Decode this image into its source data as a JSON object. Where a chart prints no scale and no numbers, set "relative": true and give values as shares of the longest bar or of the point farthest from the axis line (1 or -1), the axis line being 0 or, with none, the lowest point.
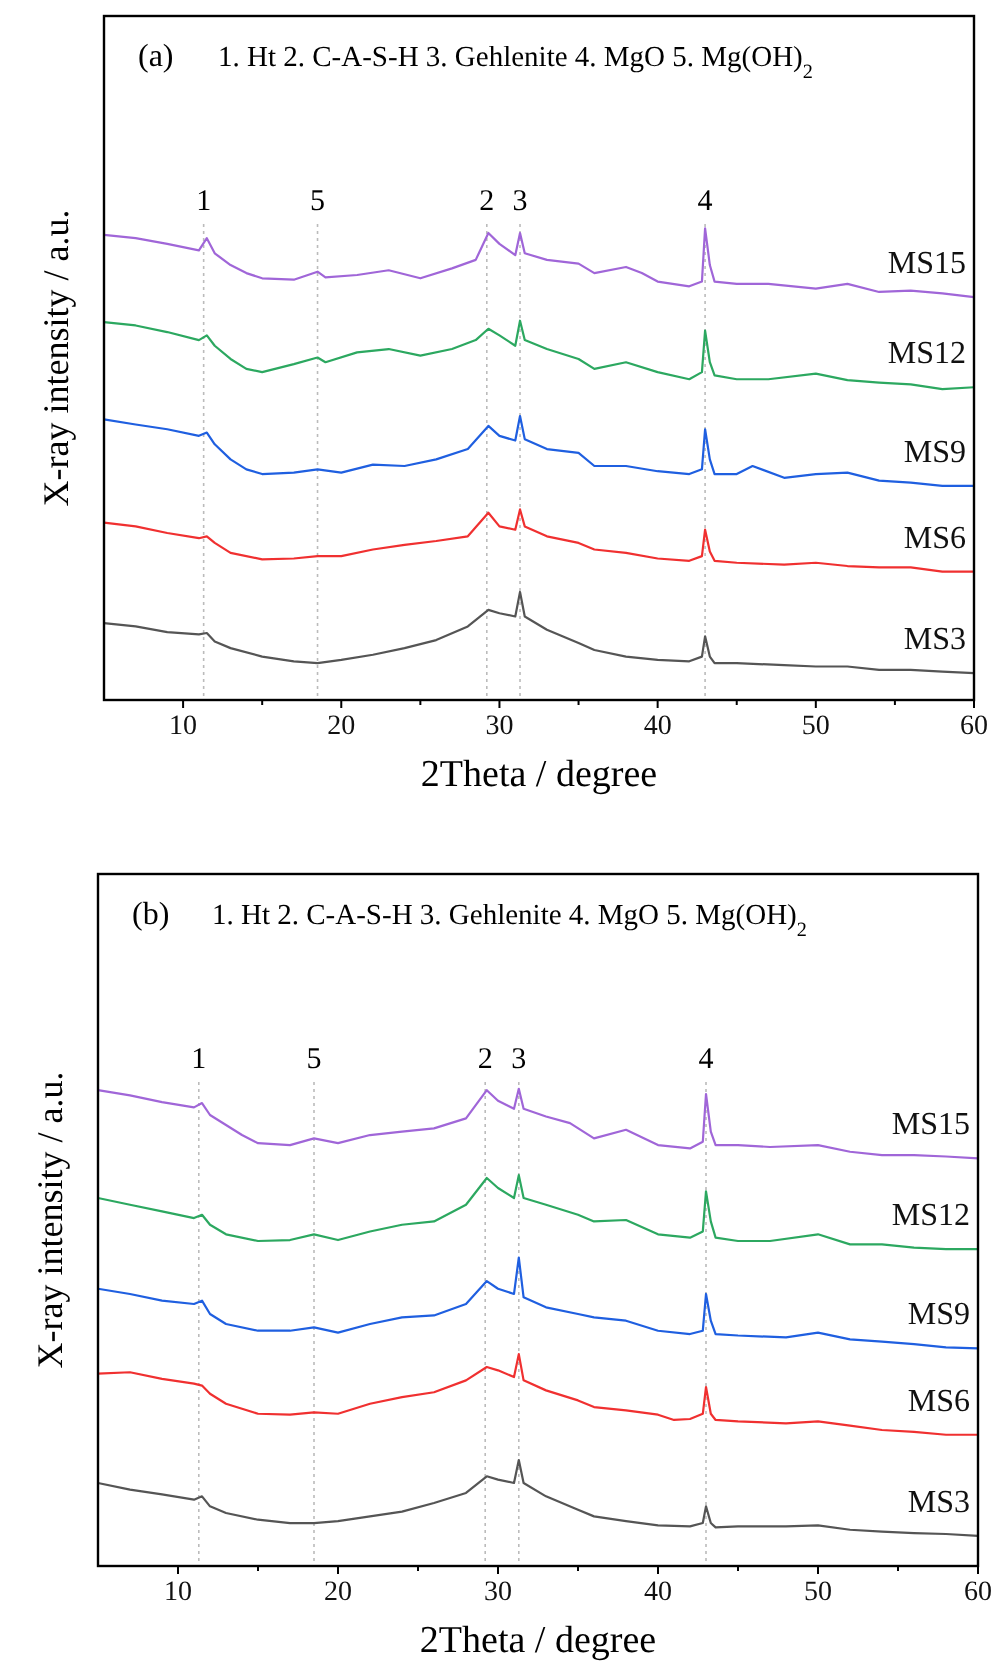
{
  "chart_data": [
    {
      "type": "line",
      "relative": true,
      "xlabel": "2Theta / degree",
      "ylabel": "X-ray intensity / a.u.",
      "annotations": [
        "(a)",
        "1. Ht  2. C-A-S-H  3. Gehlenite  4. MgO 5. Mg(OH)$_{2}$",
        "1",
        "5",
        "2",
        "3",
        "4"
      ],
      "xlim": [
        5,
        60
      ],
      "xticks": [
        {
          "value": 10,
          "label": "10"
        },
        {
          "value": 15,
          "label": null
        },
        {
          "value": 20,
          "label": "20"
        },
        {
          "value": 25,
          "label": null
        },
        {
          "value": 30,
          "label": "30"
        },
        {
          "value": 35,
          "label": null
        },
        {
          "value": 40,
          "label": "40"
        },
        {
          "value": 45,
          "label": null
        },
        {
          "value": 50,
          "label": "50"
        },
        {
          "value": 55,
          "label": null
        },
        {
          "value": 60,
          "label": "60"
        }
      ],
      "ref_lines": [
        {
          "axis": "x",
          "value": 11.3,
          "color": "#bbbbbb",
          "line_style": "dotted"
        },
        {
          "axis": "x",
          "value": 18.5,
          "color": "#bbbbbb",
          "line_style": "dotted"
        },
        {
          "axis": "x",
          "value": 29.2,
          "color": "#bbbbbb",
          "line_style": "dotted"
        },
        {
          "axis": "x",
          "value": 31.3,
          "color": "#bbbbbb",
          "line_style": "dotted"
        },
        {
          "axis": "x",
          "value": 43.0,
          "color": "#bbbbbb",
          "line_style": "dotted"
        }
      ],
      "series": [
        {
          "name": "MS15",
          "color": "#a066d8",
          "x": [
            5,
            7,
            9,
            11,
            11.5,
            12,
            13,
            14,
            15,
            17,
            18.5,
            19,
            21,
            23,
            25,
            27,
            28.5,
            29.3,
            30,
            31,
            31.3,
            31.6,
            33,
            35,
            36,
            38,
            39,
            40,
            42,
            42.8,
            43,
            43.3,
            43.6,
            45,
            47,
            50,
            52,
            54,
            56,
            58,
            60
          ],
          "values": [
            0.986,
            0.979,
            0.967,
            0.953,
            0.979,
            0.947,
            0.922,
            0.905,
            0.894,
            0.891,
            0.908,
            0.896,
            0.901,
            0.911,
            0.894,
            0.915,
            0.933,
            0.99,
            0.967,
            0.943,
            0.99,
            0.947,
            0.933,
            0.925,
            0.905,
            0.918,
            0.905,
            0.887,
            0.877,
            0.887,
            1,
            0.922,
            0.887,
            0.882,
            0.882,
            0.872,
            0.882,
            0.865,
            0.868,
            0.862,
            0.854
          ]
        },
        {
          "name": "MS12",
          "color": "#2ca860",
          "x": [
            5,
            7,
            9,
            11,
            11.5,
            12,
            13,
            14,
            15,
            17,
            18.5,
            19,
            21,
            23,
            25,
            27,
            28.5,
            29.3,
            30,
            31,
            31.3,
            31.6,
            33,
            35,
            36,
            38,
            40,
            42,
            42.8,
            43,
            43.3,
            43.6,
            45,
            47,
            50,
            52,
            54,
            56,
            58,
            60
          ],
          "values": [
            0.801,
            0.794,
            0.78,
            0.763,
            0.773,
            0.751,
            0.723,
            0.702,
            0.695,
            0.712,
            0.726,
            0.716,
            0.737,
            0.744,
            0.73,
            0.744,
            0.763,
            0.787,
            0.773,
            0.751,
            0.804,
            0.763,
            0.744,
            0.723,
            0.702,
            0.716,
            0.695,
            0.68,
            0.695,
            0.783,
            0.716,
            0.688,
            0.68,
            0.68,
            0.692,
            0.678,
            0.673,
            0.669,
            0.659,
            0.663
          ]
        },
        {
          "name": "MS9",
          "color": "#1f5fe0",
          "x": [
            5,
            7,
            9,
            11,
            11.5,
            12,
            13,
            14,
            15,
            17,
            18.5,
            20,
            22,
            24,
            26,
            28,
            29.3,
            30,
            31,
            31.3,
            31.6,
            33,
            35,
            36,
            38,
            40,
            42,
            42.8,
            43,
            43.3,
            43.6,
            45,
            46,
            48,
            50,
            52,
            54,
            56,
            58,
            60
          ],
          "values": [
            0.595,
            0.584,
            0.574,
            0.56,
            0.567,
            0.542,
            0.51,
            0.489,
            0.479,
            0.482,
            0.489,
            0.482,
            0.499,
            0.496,
            0.51,
            0.532,
            0.581,
            0.56,
            0.55,
            0.602,
            0.553,
            0.532,
            0.524,
            0.496,
            0.496,
            0.485,
            0.479,
            0.489,
            0.574,
            0.51,
            0.479,
            0.479,
            0.496,
            0.471,
            0.479,
            0.482,
            0.465,
            0.461,
            0.454,
            0.454
          ]
        },
        {
          "name": "MS6",
          "color": "#f03030",
          "x": [
            5,
            7,
            9,
            11,
            11.5,
            12,
            13,
            15,
            17,
            18.5,
            20,
            22,
            24,
            26,
            28,
            29.3,
            30,
            31,
            31.3,
            31.6,
            33,
            35,
            36,
            38,
            40,
            42,
            42.8,
            43,
            43.3,
            43.6,
            45,
            48,
            50,
            52,
            54,
            56,
            58,
            60
          ],
          "values": [
            0.376,
            0.368,
            0.354,
            0.343,
            0.347,
            0.333,
            0.312,
            0.298,
            0.3,
            0.305,
            0.305,
            0.319,
            0.329,
            0.337,
            0.347,
            0.397,
            0.368,
            0.361,
            0.404,
            0.368,
            0.347,
            0.333,
            0.319,
            0.312,
            0.3,
            0.295,
            0.305,
            0.361,
            0.315,
            0.295,
            0.291,
            0.287,
            0.291,
            0.284,
            0.281,
            0.281,
            0.272,
            0.272
          ]
        },
        {
          "name": "MS3",
          "color": "#555555",
          "x": [
            5,
            7,
            9,
            11,
            11.5,
            12,
            13,
            15,
            17,
            18.5,
            20,
            22,
            24,
            26,
            28,
            29.3,
            30,
            31,
            31.3,
            31.6,
            33,
            35,
            36,
            38,
            40,
            42,
            42.8,
            43,
            43.3,
            43.6,
            45,
            48,
            50,
            52,
            54,
            56,
            58,
            60
          ],
          "values": [
            0.163,
            0.156,
            0.144,
            0.139,
            0.142,
            0.124,
            0.11,
            0.092,
            0.082,
            0.078,
            0.085,
            0.096,
            0.11,
            0.127,
            0.156,
            0.191,
            0.184,
            0.177,
            0.229,
            0.177,
            0.149,
            0.121,
            0.106,
            0.092,
            0.085,
            0.082,
            0.092,
            0.135,
            0.092,
            0.078,
            0.078,
            0.074,
            0.071,
            0.071,
            0.064,
            0.064,
            0.06,
            0.057
          ]
        }
      ]
    },
    {
      "type": "line",
      "relative": true,
      "xlabel": "2Theta / degree",
      "ylabel": "X-ray intensity / a.u.",
      "annotations": [
        "(b)",
        "1. Ht  2. C-A-S-H  3. Gehlenite  4. MgO 5. Mg(OH)$_{2}$",
        "1",
        "5",
        "2",
        "3",
        "4"
      ],
      "xlim": [
        5,
        60
      ],
      "xticks": [
        {
          "value": 10,
          "label": "10"
        },
        {
          "value": 15,
          "label": null
        },
        {
          "value": 20,
          "label": "20"
        },
        {
          "value": 25,
          "label": null
        },
        {
          "value": 30,
          "label": "30"
        },
        {
          "value": 35,
          "label": null
        },
        {
          "value": 40,
          "label": "40"
        },
        {
          "value": 45,
          "label": null
        },
        {
          "value": 50,
          "label": "50"
        },
        {
          "value": 55,
          "label": null
        },
        {
          "value": 60,
          "label": "60"
        }
      ],
      "ref_lines": [
        {
          "axis": "x",
          "value": 11.3,
          "color": "#bbbbbb",
          "line_style": "dotted"
        },
        {
          "axis": "x",
          "value": 18.5,
          "color": "#bbbbbb",
          "line_style": "dotted"
        },
        {
          "axis": "x",
          "value": 29.2,
          "color": "#bbbbbb",
          "line_style": "dotted"
        },
        {
          "axis": "x",
          "value": 31.3,
          "color": "#bbbbbb",
          "line_style": "dotted"
        },
        {
          "axis": "x",
          "value": 43.0,
          "color": "#bbbbbb",
          "line_style": "dotted"
        }
      ],
      "series": [
        {
          "name": "MS15",
          "color": "#a066d8",
          "x": [
            5,
            7,
            9,
            11,
            11.5,
            12,
            13,
            14,
            15,
            17,
            18.5,
            20,
            22,
            24,
            26,
            28,
            29.3,
            30,
            31,
            31.3,
            31.6,
            33,
            34.5,
            36,
            38,
            40,
            42,
            42.8,
            43,
            43.3,
            43.6,
            45,
            47,
            50,
            52,
            54,
            56,
            58,
            60
          ],
          "values": [
            0.997,
            0.986,
            0.972,
            0.961,
            0.97,
            0.945,
            0.924,
            0.903,
            0.886,
            0.882,
            0.896,
            0.886,
            0.903,
            0.91,
            0.917,
            0.938,
            0.997,
            0.975,
            0.958,
            1,
            0.958,
            0.942,
            0.928,
            0.896,
            0.914,
            0.882,
            0.875,
            0.889,
            0.989,
            0.91,
            0.882,
            0.882,
            0.878,
            0.882,
            0.868,
            0.861,
            0.861,
            0.858,
            0.854
          ]
        },
        {
          "name": "MS12",
          "color": "#2ca860",
          "x": [
            5,
            7,
            9,
            11,
            11.5,
            12,
            13,
            15,
            17,
            18.5,
            20,
            22,
            24,
            26,
            28,
            29.3,
            30,
            31,
            31.3,
            31.6,
            33,
            35,
            36,
            38,
            40,
            42,
            42.8,
            43,
            43.3,
            43.6,
            45,
            47,
            50,
            52,
            54,
            56,
            58,
            60
          ],
          "values": [
            0.771,
            0.757,
            0.743,
            0.729,
            0.736,
            0.715,
            0.695,
            0.681,
            0.683,
            0.695,
            0.683,
            0.701,
            0.715,
            0.722,
            0.757,
            0.813,
            0.792,
            0.771,
            0.819,
            0.771,
            0.757,
            0.736,
            0.722,
            0.725,
            0.695,
            0.688,
            0.701,
            0.785,
            0.722,
            0.688,
            0.681,
            0.681,
            0.695,
            0.674,
            0.674,
            0.667,
            0.664,
            0.664
          ]
        },
        {
          "name": "MS9",
          "color": "#1f5fe0",
          "x": [
            5,
            7,
            9,
            11,
            11.5,
            12,
            13,
            15,
            17,
            18.5,
            20,
            22,
            24,
            26,
            28,
            29.3,
            30,
            31,
            31.3,
            31.6,
            33,
            35,
            36,
            38,
            40,
            42,
            42.8,
            43,
            43.3,
            43.6,
            45,
            48,
            50,
            52,
            54,
            56,
            58,
            60
          ],
          "values": [
            0.581,
            0.57,
            0.556,
            0.549,
            0.556,
            0.528,
            0.507,
            0.493,
            0.493,
            0.5,
            0.489,
            0.507,
            0.521,
            0.525,
            0.549,
            0.597,
            0.581,
            0.57,
            0.646,
            0.563,
            0.542,
            0.528,
            0.521,
            0.514,
            0.493,
            0.486,
            0.493,
            0.57,
            0.514,
            0.486,
            0.483,
            0.479,
            0.489,
            0.475,
            0.47,
            0.465,
            0.458,
            0.456
          ]
        },
        {
          "name": "MS6",
          "color": "#f03030",
          "x": [
            5,
            7,
            9,
            11,
            11.5,
            12,
            13,
            15,
            17,
            18.5,
            20,
            22,
            24,
            26,
            28,
            29.3,
            30,
            31,
            31.3,
            31.6,
            33,
            35,
            36,
            38,
            40,
            41,
            42,
            42.8,
            43,
            43.3,
            43.6,
            45,
            48,
            50,
            52,
            54,
            56,
            58,
            60
          ],
          "values": [
            0.403,
            0.406,
            0.392,
            0.382,
            0.378,
            0.361,
            0.34,
            0.319,
            0.317,
            0.322,
            0.319,
            0.34,
            0.354,
            0.364,
            0.389,
            0.417,
            0.41,
            0.396,
            0.444,
            0.389,
            0.368,
            0.347,
            0.333,
            0.326,
            0.317,
            0.306,
            0.308,
            0.319,
            0.375,
            0.319,
            0.306,
            0.303,
            0.299,
            0.303,
            0.294,
            0.285,
            0.281,
            0.275,
            0.275
          ]
        },
        {
          "name": "MS3",
          "color": "#555555",
          "x": [
            5,
            7,
            9,
            11,
            11.5,
            12,
            13,
            15,
            17,
            18.5,
            20,
            22,
            24,
            26,
            28,
            29.3,
            30,
            31,
            31.3,
            31.6,
            33,
            35,
            36,
            38,
            40,
            42,
            42.8,
            43,
            43.3,
            43.6,
            45,
            48,
            50,
            52,
            54,
            56,
            58,
            60
          ],
          "values": [
            0.174,
            0.16,
            0.15,
            0.139,
            0.146,
            0.125,
            0.111,
            0.097,
            0.09,
            0.09,
            0.094,
            0.104,
            0.114,
            0.132,
            0.153,
            0.188,
            0.181,
            0.174,
            0.222,
            0.174,
            0.146,
            0.118,
            0.104,
            0.094,
            0.085,
            0.083,
            0.09,
            0.125,
            0.09,
            0.081,
            0.083,
            0.083,
            0.085,
            0.076,
            0.072,
            0.069,
            0.067,
            0.063
          ]
        }
      ]
    }
  ]
}
